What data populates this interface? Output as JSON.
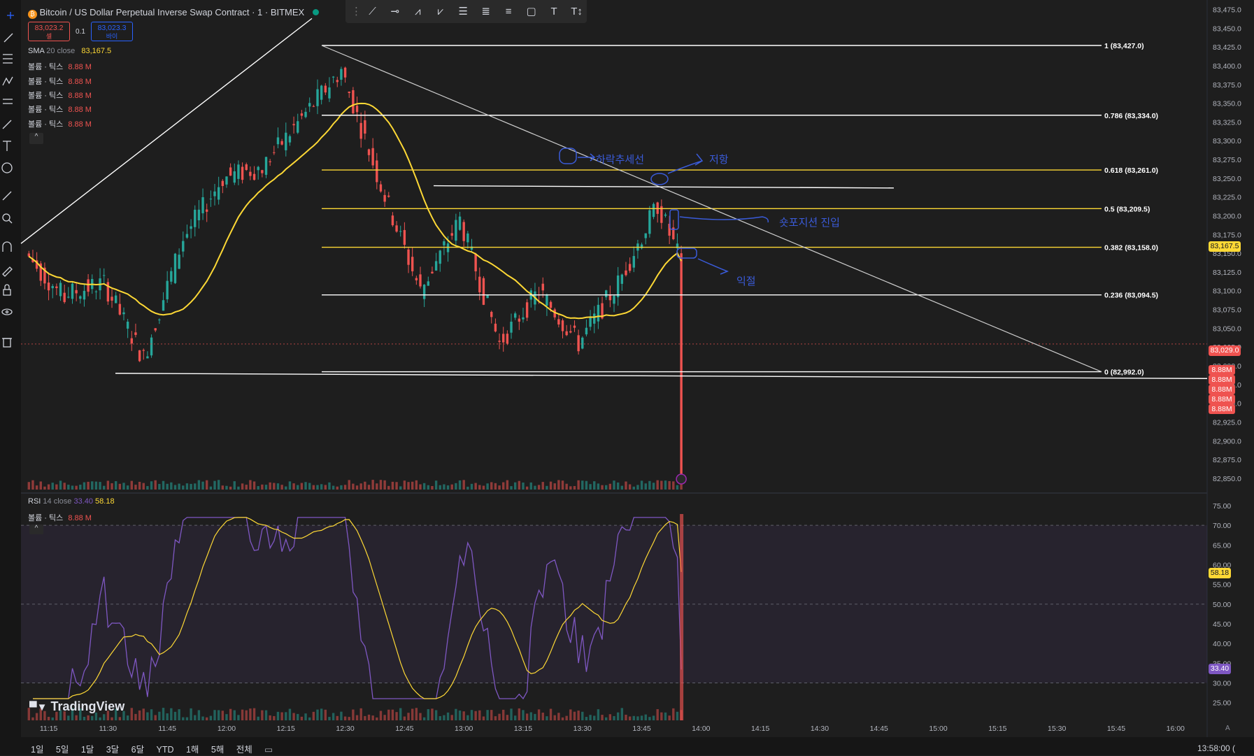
{
  "header": {
    "symbol_title": "Bitcoin / US Dollar Perpetual Inverse Swap Contract · 1 · BITMEX",
    "sell_price": "83,023.2",
    "sell_label": "셀",
    "spread": "0.1",
    "buy_price": "83,023.3",
    "buy_label": "바이"
  },
  "legend": {
    "sma_label": "SMA",
    "sma_params": "20 close",
    "sma_value": "83,167.5",
    "volume_label": "볼륨 · 틱스",
    "volume_value": "8.88 M",
    "rsi_label": "RSI",
    "rsi_params": "14 close",
    "rsi_value": "33.40",
    "rsi_ma_value": "58.18",
    "rsi_volume_label": "볼륨 · 틱스",
    "rsi_volume_value": "8.88 M"
  },
  "annotations": {
    "downtrend": "하락추세선",
    "resistance": "저항",
    "short_entry": "숏포지션 진입",
    "take_profit": "익절"
  },
  "price_badges": {
    "sma": "83,167.5",
    "last": "83,029.0",
    "volume": [
      "8.88M",
      "8.88M",
      "8.88M",
      "8.88M",
      "8.88M"
    ],
    "rsi_ma": "58.18",
    "rsi": "33.40"
  },
  "bottom_bar": {
    "ranges": [
      "1일",
      "5일",
      "1달",
      "3달",
      "6달",
      "YTD",
      "1해",
      "5해",
      "전체"
    ],
    "clock": "13:58:00 (",
    "logo": "TradingView",
    "axis_auto": "A"
  },
  "colors": {
    "background": "#1e1e1e",
    "up": "#26a69a",
    "down": "#ef5350",
    "sma": "#fdd835",
    "rsi": "#7e57c2",
    "rsi_ma": "#fdd835",
    "fib_white": "#ffffff",
    "fib_yellow": "#fdd835",
    "annotation": "#3a5bd9"
  },
  "chart_data": {
    "type": "candlestick",
    "symbol": "Bitcoin / US Dollar Perpetual Inverse Swap Contract",
    "interval": "1",
    "price_axis": {
      "ticks": [
        82850,
        82875,
        82900,
        82925,
        82950,
        82975,
        83000,
        83025,
        83050,
        83075,
        83100,
        83125,
        83150,
        83175,
        83200,
        83225,
        83250,
        83275,
        83300,
        83325,
        83350,
        83375,
        83400,
        83425,
        83450,
        83475
      ],
      "range": [
        82835,
        83482
      ]
    },
    "time_axis": {
      "ticks": [
        "11:15",
        "11:30",
        "11:45",
        "12:00",
        "12:15",
        "12:30",
        "12:45",
        "13:00",
        "13:15",
        "13:30",
        "13:45",
        "14:00",
        "14:15",
        "14:30",
        "14:45",
        "15:00",
        "15:15",
        "15:30",
        "15:45",
        "16:00"
      ],
      "range": [
        "11:08",
        "16:08"
      ]
    },
    "fibonacci": [
      {
        "ratio": "1",
        "price": 83427.0,
        "label": "1 (83,427.0)"
      },
      {
        "ratio": "0.786",
        "price": 83334.0,
        "label": "0.786 (83,334.0)"
      },
      {
        "ratio": "0.618",
        "price": 83261.0,
        "label": "0.618 (83,261.0)"
      },
      {
        "ratio": "0.5",
        "price": 83209.5,
        "label": "0.5 (83,209.5)"
      },
      {
        "ratio": "0.382",
        "price": 83158.0,
        "label": "0.382 (83,158.0)"
      },
      {
        "ratio": "0.236",
        "price": 83094.5,
        "label": "0.236 (83,094.5)"
      },
      {
        "ratio": "0",
        "price": 82992.0,
        "label": "0 (82,992.0)"
      }
    ],
    "candles": [
      {
        "t": "11:10",
        "o": 83150,
        "h": 83165,
        "c": 83090,
        "l": 83080
      },
      {
        "t": "11:20",
        "o": 83095,
        "h": 83145,
        "c": 83110,
        "l": 83060
      },
      {
        "t": "11:30",
        "o": 83110,
        "h": 83125,
        "c": 83010,
        "l": 82995
      },
      {
        "t": "11:40",
        "o": 83010,
        "h": 83200,
        "c": 83170,
        "l": 83010
      },
      {
        "t": "11:50",
        "o": 83170,
        "h": 83270,
        "c": 83250,
        "l": 83130
      },
      {
        "t": "12:00",
        "o": 83250,
        "h": 83300,
        "c": 83265,
        "l": 83200
      },
      {
        "t": "12:10",
        "o": 83265,
        "h": 83345,
        "c": 83330,
        "l": 83250
      },
      {
        "t": "12:20",
        "o": 83330,
        "h": 83425,
        "c": 83395,
        "l": 83310
      },
      {
        "t": "12:30",
        "o": 83395,
        "h": 83410,
        "c": 83240,
        "l": 83230
      },
      {
        "t": "12:40",
        "o": 83240,
        "h": 83260,
        "c": 83100,
        "l": 83095
      },
      {
        "t": "12:50",
        "o": 83100,
        "h": 83205,
        "c": 83195,
        "l": 83090
      },
      {
        "t": "13:00",
        "o": 83195,
        "h": 83215,
        "c": 83030,
        "l": 83005
      },
      {
        "t": "13:10",
        "o": 83030,
        "h": 83155,
        "c": 83100,
        "l": 83020
      },
      {
        "t": "13:20",
        "o": 83100,
        "h": 83110,
        "c": 83030,
        "l": 83015
      },
      {
        "t": "13:30",
        "o": 83030,
        "h": 83140,
        "c": 83110,
        "l": 83020
      },
      {
        "t": "13:40",
        "o": 83110,
        "h": 83248,
        "c": 83215,
        "l": 83100
      },
      {
        "t": "13:50",
        "o": 83215,
        "h": 83230,
        "c": 83150,
        "l": 83140
      },
      {
        "t": "13:55",
        "o": 83150,
        "h": 83160,
        "c": 82850,
        "l": 82845
      }
    ],
    "sma": {
      "name": "SMA 20 close",
      "last": 83167.5
    },
    "rsi": {
      "axis_ticks": [
        25,
        30,
        35,
        40,
        45,
        50,
        55,
        60,
        65,
        70,
        75
      ],
      "band": [
        30,
        70
      ],
      "mid": 50,
      "last": 33.4,
      "ma_last": 58.18
    },
    "volume": {
      "last": "8.88M"
    }
  }
}
